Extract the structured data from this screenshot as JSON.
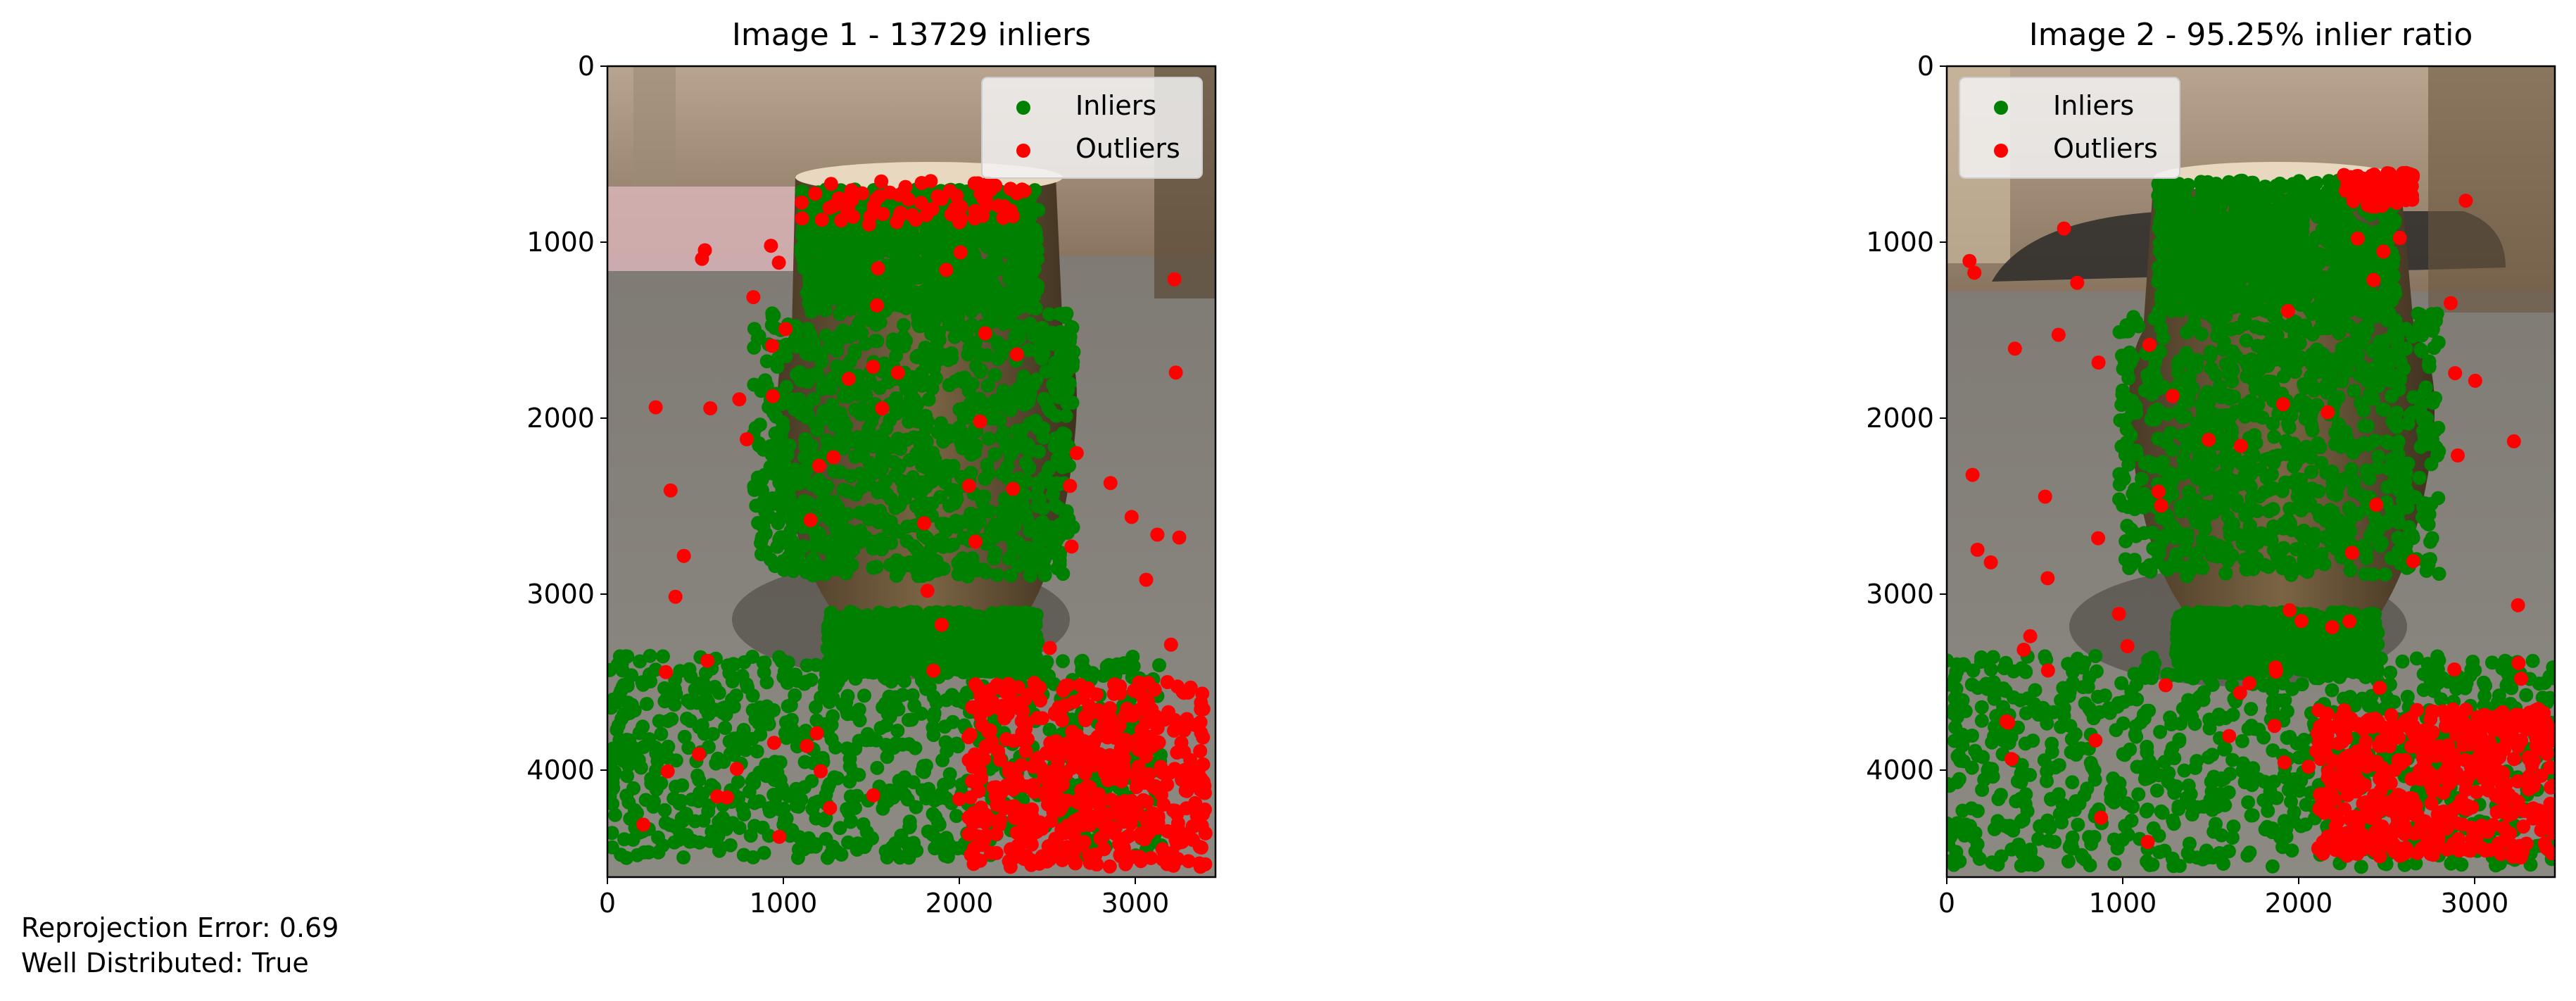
{
  "colors": {
    "inlier": "#008000",
    "outlier": "#ff0000",
    "axis": "#000000",
    "legend_bg": "#f2f2f2"
  },
  "charts": [
    {
      "title": "Image 1 - 13729 inliers",
      "legend": {
        "items": [
          "Inliers",
          "Outliers"
        ],
        "placement": "upper right"
      }
    },
    {
      "title": "Image 2 - 95.25% inlier ratio",
      "legend": {
        "items": [
          "Inliers",
          "Outliers"
        ],
        "placement": "upper left"
      }
    }
  ],
  "chart_data": [
    {
      "type": "scatter",
      "title": "Image 1 - 13729 inliers",
      "xlim": [
        0,
        3456
      ],
      "ylim": [
        4608,
        0
      ],
      "y_inverted": true,
      "background": "photo (vase on countertop)",
      "xticks": [
        0,
        1000,
        2000,
        3000
      ],
      "yticks": [
        0,
        1000,
        2000,
        3000,
        4000
      ],
      "grid": false,
      "legend": "upper right",
      "series": [
        {
          "name": "Inliers",
          "color": "#008000",
          "clusters": [
            {
              "region": "vase neck",
              "x": [
                1100,
                2450
              ],
              "y": [
                700,
                1400
              ]
            },
            {
              "region": "vase body",
              "x": [
                830,
                2650
              ],
              "y": [
                1400,
                2900
              ]
            },
            {
              "region": "foreground surface",
              "x": [
                0,
                3150
              ],
              "y": [
                3350,
                4500
              ]
            },
            {
              "region": "vase base",
              "x": [
                1250,
                2450
              ],
              "y": [
                3100,
                3450
              ]
            }
          ]
        },
        {
          "name": "Outliers",
          "color": "#ff0000",
          "clusters": [
            {
              "region": "top rim",
              "x": [
                1100,
                2400
              ],
              "y": [
                650,
                900
              ]
            },
            {
              "region": "lower right dense",
              "x": [
                2050,
                3400
              ],
              "y": [
                3500,
                4550
              ]
            },
            {
              "region": "scattered",
              "x": [
                200,
                3300
              ],
              "y": [
                1000,
                4400
              ]
            }
          ]
        }
      ]
    },
    {
      "type": "scatter",
      "title": "Image 2 - 95.25% inlier ratio",
      "xlim": [
        0,
        3456
      ],
      "ylim": [
        4608,
        0
      ],
      "y_inverted": true,
      "background": "photo (vase on countertop)",
      "xticks": [
        0,
        1000,
        2000,
        3000
      ],
      "yticks": [
        0,
        1000,
        2000,
        3000,
        4000
      ],
      "grid": false,
      "legend": "upper left",
      "series": [
        {
          "name": "Inliers",
          "color": "#008000",
          "clusters": [
            {
              "region": "vase neck",
              "x": [
                1200,
                2550
              ],
              "y": [
                650,
                1400
              ]
            },
            {
              "region": "vase body",
              "x": [
                980,
                2800
              ],
              "y": [
                1400,
                2900
              ]
            },
            {
              "region": "foreground surface",
              "x": [
                0,
                3456
              ],
              "y": [
                3350,
                4550
              ]
            },
            {
              "region": "vase base",
              "x": [
                1300,
                2450
              ],
              "y": [
                3100,
                3450
              ]
            }
          ]
        },
        {
          "name": "Outliers",
          "color": "#ff0000",
          "clusters": [
            {
              "region": "top rim",
              "x": [
                2250,
                2650
              ],
              "y": [
                600,
                800
              ]
            },
            {
              "region": "lower right dense",
              "x": [
                2100,
                3456
              ],
              "y": [
                3650,
                4500
              ]
            },
            {
              "region": "scattered",
              "x": [
                50,
                3300
              ],
              "y": [
                700,
                4450
              ]
            }
          ]
        }
      ]
    }
  ],
  "footer": {
    "reprojection_error": "Reprojection Error: 0.69",
    "well_distributed": "Well Distributed: True"
  }
}
